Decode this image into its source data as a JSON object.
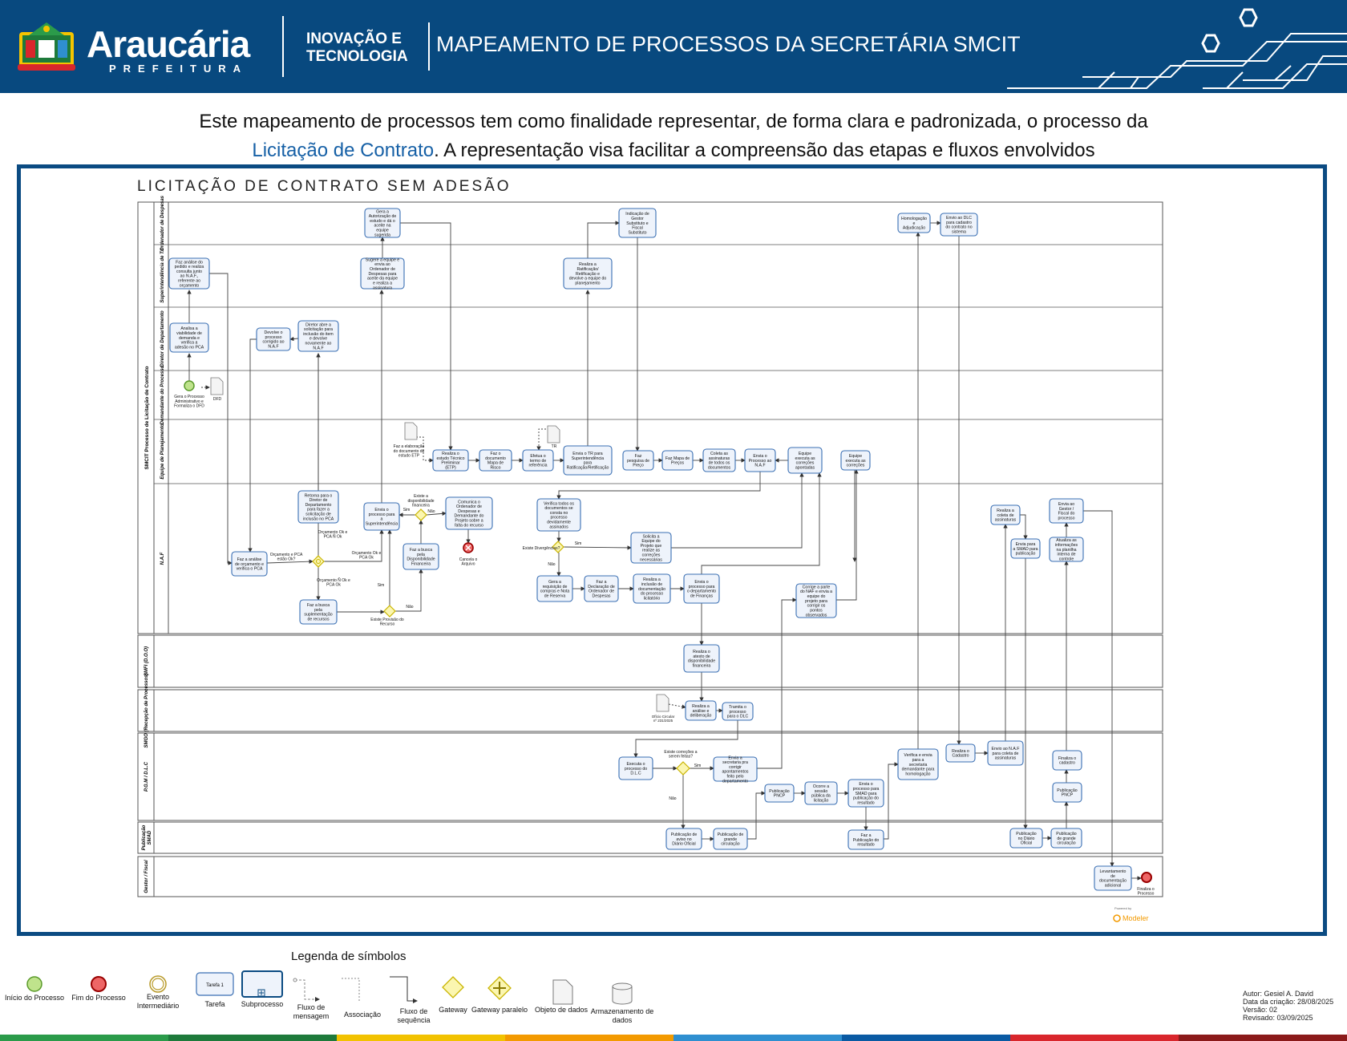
{
  "header": {
    "logo_name": "Araucária",
    "logo_sub": "PREFEITURA",
    "dept_line1": "INOVAÇÃO E",
    "dept_line2": "TECNOLOGIA",
    "title": "MAPEAMENTO DE PROCESSOS DA SECRETÁRIA SMCIT"
  },
  "intro": {
    "line1": "Este mapeamento de processos tem como finalidade representar, de forma clara e padronizada, o processo da",
    "highlight": "Licitação de Contrato",
    "line2_rest": ". A representação visa facilitar a compreensão das etapas e fluxos envolvidos"
  },
  "diagram": {
    "title": "LICITAÇÃO DE CONTRATO SEM ADESÃO",
    "pool_label": "SMCIT Processo de Licitação de Contrato",
    "lanes": [
      "Ordenador de Despesas",
      "Superintendência de T.I",
      "Diretor de Departamento",
      "Demandante do Processo",
      "Equipe de Planejamento",
      "N.A.F",
      "SMFI (D.O.O)",
      "SMGO (Recepção de Processos)",
      "P.G.M / D.L.C",
      "Publicação SMAD",
      "Gestor / Fiscal"
    ],
    "tasks": {
      "t_gera_aut": "Gera a Autorização de estudo e dá o aceite na equipe sugerida",
      "t_indica": "Indicação de Gestor Substituto e Fiscal Substituto",
      "t_homolog": "Homologação e Adjudicação",
      "t_envio_dlc": "Envio ao DLC para cadastro do contrato no sistema",
      "t_faz_analise_pedido": "Faz análise do pedido e realiza consulta junto ao N.A.F., referente ao orçamento",
      "t_sugere": "Sugere a equipe e envia ao Ordenador de Despesas para aceite da equipe e realiza a assinatura",
      "t_ratif": "Realiza a Ratificação/ Retificação e devolve a equipe do planejamento",
      "t_analisa": "Analisa a viabilidade de demanda e verifica a adesão no PCA",
      "t_devolve": "Devolve o processo corrigido ao N.A.F",
      "t_diretor_abre": "Diretor abre a solicitação para inclusão do item e devolve novamente ao N.A.F",
      "e_start_label": "Gera o Processo Administrativo e Formaliza o DFD",
      "d_dfd": "DFD",
      "d_etp_label": "Faz a elaboração do documento de estudo ETP",
      "t_etp": "Realiza o estudo Técnico Preliminar (ETP)",
      "t_risco": "Faz o documento Mapa de Risco",
      "t_termo": "Efetua o termo de referência",
      "d_tr": "TR",
      "t_envia_tr": "Envia o TR para Superintendência para Ratificação/Retificação",
      "t_pesq": "Faz pesquisa de Preço",
      "t_mapa_preco": "Faz Mapa de Preços",
      "t_coleta": "Coleta as assinaturas de todos os documentos",
      "t_envia_naf": "Envia o Processo ao N.A.F",
      "t_equipe_exec1": "Equipe executa as correções apontadas",
      "t_equipe_exec2": "Equipe executa as correções",
      "t_retorna": "Retorna para o Diretor de Departamento para fazer a solicitação de inclusão no PCA",
      "t_envia_super": "Envia o processo para a Superintendência",
      "t_comunica": "Comunica o Ordenador de Despesas e Demandante do Projeto sobre a falta do recurso",
      "e_cancela": "Cancela o Arquivo",
      "g_disp_label": "Existe a disponibilidade financeira",
      "t_busca_disp": "Faz a busca pela Disponibilidade Financeira",
      "t_faz_analise_orc": "Faz a análise de orçamento e verifica o PCA",
      "g_orc_label1": "Orçamento e PCA estão Ok?",
      "g_orc_ok_n": "Orçamento Ok e PCA Ñ Ok",
      "g_orc_ok_ok": "Orçamento Ok e PCA Ok",
      "g_orc_n_ok": "Orçamento Ñ Ok e PCA Ok",
      "t_busca_supl": "Faz a busca pela suplementação de recursos",
      "g_prov_label": "Existe Provisão do Recurso",
      "t_verifica_docs": "Verifica todos os documentos se consta no processo devidamente assinados",
      "g_diverg_label": "Existe Divergências?",
      "t_solicita": "Solicita a Equipe do Projeto que realize as correções necessárias",
      "t_gera_req": "Gera a requisição de compras e Nota de Reserva",
      "t_faz_decl": "Faz a Declaração de Ordenador de Despesas",
      "t_realiza_incl": "Realiza a inclusão de documentação do processo licitatório",
      "t_envia_fin": "Envia o processo para o departamento de Finanças",
      "t_corrige": "Corrige a parte do NAF e envia a equipe do projeto para corrigir os pontos observados",
      "t_realiza_coleta": "Realiza a coleta de assinaturas",
      "t_envia_smad": "Envia para a SMAD para publicação",
      "t_envia_gestor": "Envia ao Gestor / Fiscal do processo",
      "t_atualiza": "Atualiza as informações na planilha interna de controle",
      "t_atesto": "Realiza o atesto de disponibilidade financeira",
      "d_oficio": "Ofício Circular nº 231/2025",
      "t_analise_delib": "Realiza a análise e deliberação",
      "t_tramita": "Tramita o processo para o DLC",
      "t_executa_dlc": "Executa o processo do D.L.C",
      "g_corr_label": "Existe correções a serem feitas?",
      "t_envia_sec": "Envia a secretaria pra corrigir apontamentos feito pelo departamento",
      "t_pub_pncp1": "Publicação PNCP",
      "t_sessao": "Ocorre a sessão pública da licitação",
      "t_envia_smad_res": "Envia o processo para SMAD para publicação do resultado",
      "t_verifica_envia": "Verifica e envia para a secretaria demandante para homologação",
      "t_realiza_cad": "Realiza o Cadastro",
      "t_envio_naf_col": "Envio ao N.A.F para coleta de assinaturas",
      "t_finaliza_cad": "Finaliza o cadastro",
      "t_pub_pncp2": "Publicação PNCP",
      "t_pub_aviso": "Publicação de aviso no Diário Oficial",
      "t_pub_grande1": "Publicação de grande circulação",
      "t_faz_pub_res": "Faz a Publicação do resultado",
      "t_pub_diario": "Publicação no Diário Oficial",
      "t_pub_grande2": "Publicação de grande circulação",
      "t_levantamento": "Levantamento de documentação adicional",
      "e_end_label": "Finaliza o Processo"
    },
    "flow_labels": {
      "sim": "Sim",
      "nao": "Não"
    },
    "watermark": {
      "small": "Powered by",
      "brand": "Modeler"
    }
  },
  "legend": {
    "title": "Legenda de símbolos",
    "items": {
      "start": "Início do Processo",
      "end": "Fim do Processo",
      "intermediate": "Evento Intermediário",
      "task": "Tarefa",
      "task_inner": "Tarefa 1",
      "subprocess": "Subprocesso",
      "message_flow": "Fluxo de mensagem",
      "association": "Associação",
      "sequence_flow": "Fluxo de sequência",
      "gateway": "Gateway",
      "parallel_gateway": "Gateway paralelo",
      "data_object": "Objeto de dados",
      "data_store": "Armazenamento de dados"
    }
  },
  "author": {
    "line1": "Autor: Gesiel A. David",
    "line2": "Data da criação: 28/08/2025",
    "line3": "Versão: 02",
    "line4": "Revisado: 03/09/2025"
  },
  "colors": {
    "header_bg": "#08497f",
    "frame": "#0b4b82",
    "task_fill": "#eef3fb",
    "task_stroke": "#3a6fb3",
    "gateway_fill": "#fbf6b0",
    "gateway_stroke": "#c9b400",
    "start_fill": "#bfe38c",
    "end_fill": "#e66",
    "bar": [
      "#2b9b4a",
      "#1e7a3b",
      "#f2c200",
      "#f39a00",
      "#2f8fd0",
      "#0a5aa3",
      "#d9262c",
      "#8b1a1a"
    ]
  }
}
